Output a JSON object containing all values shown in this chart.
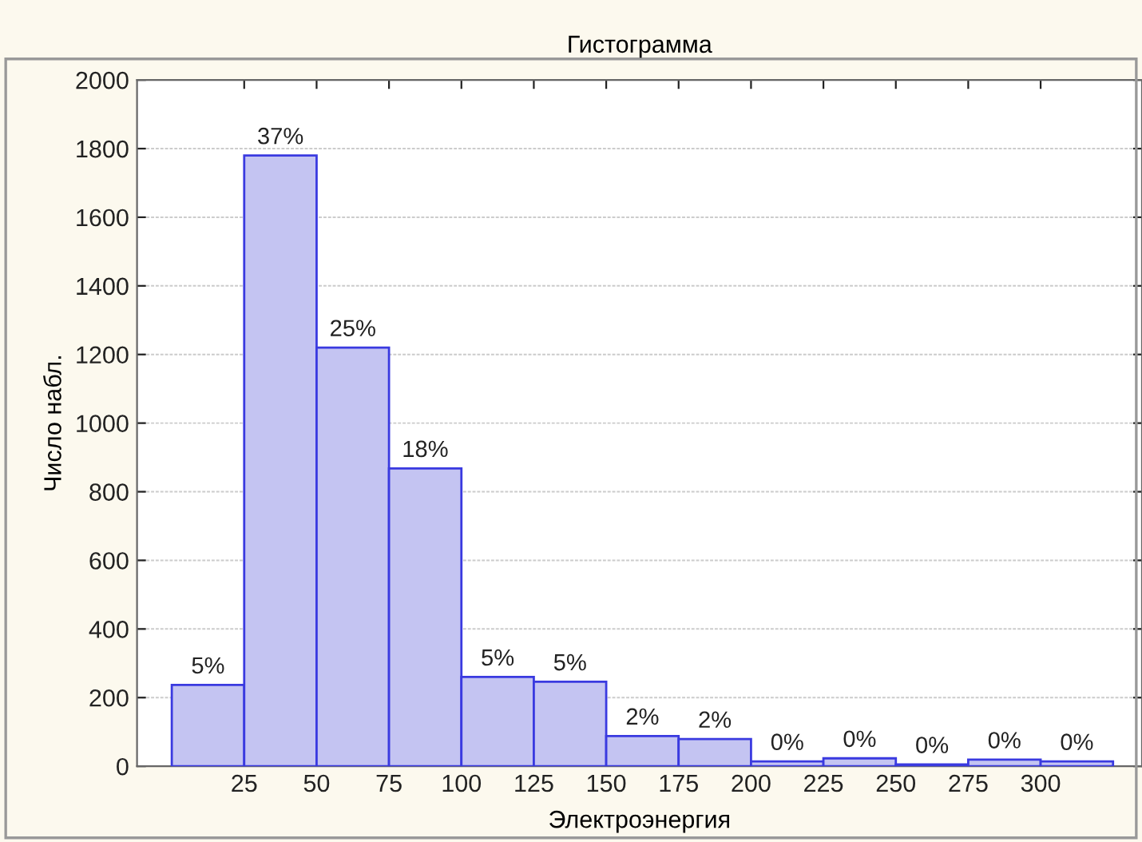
{
  "chart_data": {
    "type": "histogram",
    "title": "Гистограмма",
    "xlabel": "Электроэнергия",
    "ylabel": "Число набл.",
    "bins": [
      0,
      25,
      50,
      75,
      100,
      125,
      150,
      175,
      200,
      225,
      250,
      275,
      300,
      325
    ],
    "values": [
      237,
      1780,
      1220,
      868,
      260,
      246,
      88,
      79,
      14,
      23,
      5,
      19,
      14
    ],
    "annotations": [
      {
        "text": "5%",
        "x": 12.5,
        "y": 237
      },
      {
        "text": "37%",
        "x": 37.5,
        "y": 1780
      },
      {
        "text": "25%",
        "x": 62.5,
        "y": 1220
      },
      {
        "text": "18%",
        "x": 87.5,
        "y": 868
      },
      {
        "text": "5%",
        "x": 112.5,
        "y": 260
      },
      {
        "text": "5%",
        "x": 137.5,
        "y": 246
      },
      {
        "text": "2%",
        "x": 162.5,
        "y": 88
      },
      {
        "text": "2%",
        "x": 187.5,
        "y": 79
      },
      {
        "text": "0%",
        "x": 212.5,
        "y": 14
      },
      {
        "text": "0%",
        "x": 237.5,
        "y": 23
      },
      {
        "text": "0%",
        "x": 262.5,
        "y": 5
      },
      {
        "text": "0%",
        "x": 287.5,
        "y": 19
      },
      {
        "text": "0%",
        "x": 312.5,
        "y": 14
      }
    ],
    "color": "#c4c4f2",
    "xlim": [
      -12,
      335
    ],
    "xticks": [
      25,
      50,
      75,
      100,
      125,
      150,
      175,
      200,
      225,
      250,
      275,
      300
    ],
    "ylim": [
      0,
      2000
    ],
    "yticks": [
      0,
      200,
      400,
      600,
      800,
      1000,
      1200,
      1400,
      1600,
      1800,
      2000
    ],
    "grid": "y",
    "legend": false
  }
}
